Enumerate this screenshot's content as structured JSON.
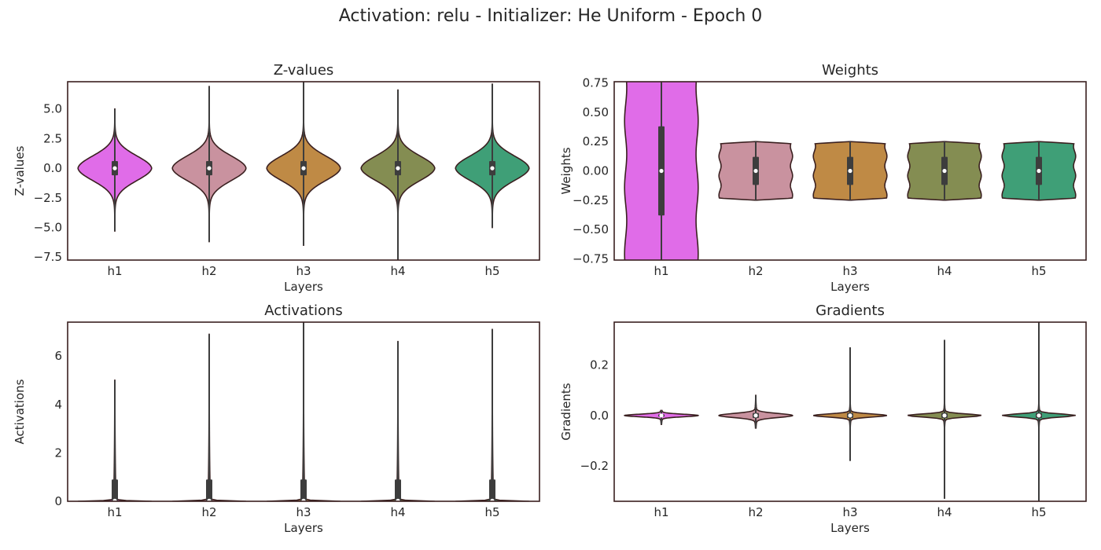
{
  "suptitle": "Activation: relu - Initializer: He Uniform  - Epoch 0",
  "colors": {
    "violins": [
      "#e06ce8",
      "#c9929f",
      "#bf8a45",
      "#848d52",
      "#3f9f77"
    ],
    "box": "#3d3d3d",
    "median": "#ffffff",
    "outline": "#3a2020"
  },
  "chart_data": [
    {
      "type": "violin",
      "title": "Z-values",
      "xlabel": "Layers",
      "ylabel": "Z-values",
      "categories": [
        "h1",
        "h2",
        "h3",
        "h4",
        "h5"
      ],
      "ylim": [
        -7.75,
        7.3
      ],
      "yticks": [
        -7.5,
        -5.0,
        -2.5,
        0.0,
        2.5,
        5.0
      ],
      "ytick_labels": [
        "−7.5",
        "−5.0",
        "−2.5",
        "0.0",
        "2.5",
        "5.0"
      ],
      "series": [
        {
          "min": -5.3,
          "max": 5.0,
          "q1": -0.6,
          "median": 0.0,
          "q3": 0.6,
          "shape": "peaked",
          "sigma": 1.05
        },
        {
          "min": -6.2,
          "max": 6.9,
          "q1": -0.6,
          "median": 0.0,
          "q3": 0.6,
          "shape": "peaked",
          "sigma": 1.05
        },
        {
          "min": -6.5,
          "max": 7.5,
          "q1": -0.6,
          "median": 0.0,
          "q3": 0.6,
          "shape": "peaked",
          "sigma": 1.05
        },
        {
          "min": -8.0,
          "max": 6.6,
          "q1": -0.6,
          "median": 0.0,
          "q3": 0.6,
          "shape": "peaked",
          "sigma": 1.05
        },
        {
          "min": -5.0,
          "max": 7.1,
          "q1": -0.6,
          "median": 0.0,
          "q3": 0.6,
          "shape": "peaked",
          "sigma": 1.05
        }
      ]
    },
    {
      "type": "violin",
      "title": "Weights",
      "xlabel": "Layers",
      "ylabel": "Weights",
      "categories": [
        "h1",
        "h2",
        "h3",
        "h4",
        "h5"
      ],
      "ylim": [
        -0.76,
        0.76
      ],
      "yticks": [
        -0.75,
        -0.5,
        -0.25,
        0.0,
        0.25,
        0.5,
        0.75
      ],
      "ytick_labels": [
        "−0.75",
        "−0.50",
        "−0.25",
        "0.00",
        "0.25",
        "0.50",
        "0.75"
      ],
      "series": [
        {
          "min": -0.85,
          "max": 0.85,
          "q1": -0.38,
          "median": 0.0,
          "q3": 0.38,
          "shape": "flat"
        },
        {
          "min": -0.25,
          "max": 0.25,
          "q1": -0.12,
          "median": 0.0,
          "q3": 0.12,
          "shape": "flat"
        },
        {
          "min": -0.25,
          "max": 0.25,
          "q1": -0.12,
          "median": 0.0,
          "q3": 0.12,
          "shape": "flat"
        },
        {
          "min": -0.25,
          "max": 0.25,
          "q1": -0.12,
          "median": 0.0,
          "q3": 0.12,
          "shape": "flat"
        },
        {
          "min": -0.25,
          "max": 0.25,
          "q1": -0.12,
          "median": 0.0,
          "q3": 0.12,
          "shape": "flat"
        }
      ]
    },
    {
      "type": "violin",
      "title": "Activations",
      "xlabel": "Layers",
      "ylabel": "Activations",
      "categories": [
        "h1",
        "h2",
        "h3",
        "h4",
        "h5"
      ],
      "ylim": [
        0,
        7.4
      ],
      "yticks": [
        0,
        2,
        4,
        6
      ],
      "ytick_labels": [
        "0",
        "2",
        "4",
        "6"
      ],
      "series": [
        {
          "min": 0,
          "max": 5.0,
          "q1": 0.0,
          "median": 0.02,
          "q3": 0.9,
          "shape": "relu"
        },
        {
          "min": 0,
          "max": 6.9,
          "q1": 0.0,
          "median": 0.02,
          "q3": 0.9,
          "shape": "relu"
        },
        {
          "min": 0,
          "max": 7.5,
          "q1": 0.0,
          "median": 0.02,
          "q3": 0.9,
          "shape": "relu"
        },
        {
          "min": 0,
          "max": 6.6,
          "q1": 0.0,
          "median": 0.02,
          "q3": 0.9,
          "shape": "relu"
        },
        {
          "min": 0,
          "max": 7.1,
          "q1": 0.0,
          "median": 0.02,
          "q3": 0.9,
          "shape": "relu"
        }
      ]
    },
    {
      "type": "violin",
      "title": "Gradients",
      "xlabel": "Layers",
      "ylabel": "Gradients",
      "categories": [
        "h1",
        "h2",
        "h3",
        "h4",
        "h5"
      ],
      "ylim": [
        -0.34,
        0.37
      ],
      "yticks": [
        -0.2,
        0.0,
        0.2
      ],
      "ytick_labels": [
        "−0.2",
        "0.0",
        "0.2"
      ],
      "series": [
        {
          "min": -0.035,
          "max": 0.02,
          "q1": -0.005,
          "median": 0.0,
          "q3": 0.005,
          "shape": "spiky",
          "sigma": 0.005
        },
        {
          "min": -0.05,
          "max": 0.08,
          "q1": -0.01,
          "median": 0.0,
          "q3": 0.01,
          "shape": "spiky",
          "sigma": 0.008
        },
        {
          "min": -0.18,
          "max": 0.27,
          "q1": -0.01,
          "median": 0.0,
          "q3": 0.01,
          "shape": "spiky",
          "sigma": 0.006
        },
        {
          "min": -0.33,
          "max": 0.3,
          "q1": -0.01,
          "median": 0.0,
          "q3": 0.01,
          "shape": "spiky",
          "sigma": 0.006
        },
        {
          "min": -0.37,
          "max": 0.4,
          "q1": -0.01,
          "median": 0.0,
          "q3": 0.01,
          "shape": "spiky",
          "sigma": 0.006
        }
      ]
    }
  ]
}
